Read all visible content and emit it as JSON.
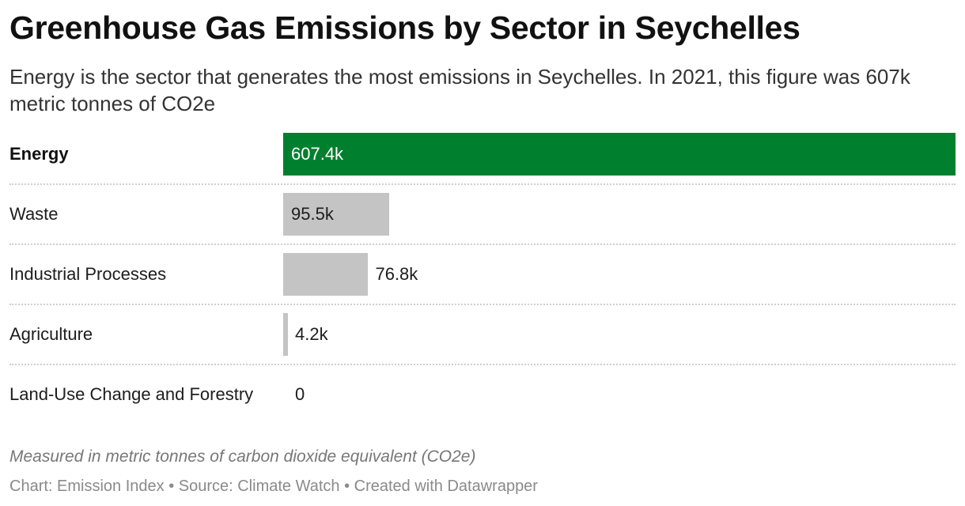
{
  "header": {
    "title": "Greenhouse Gas Emissions by Sector in Seychelles",
    "subtitle": "Energy is the sector that generates the most emissions in Seychelles. In 2021, this figure was 607k metric tonnes of CO2e"
  },
  "chart_data": {
    "type": "bar",
    "orientation": "horizontal",
    "categories": [
      "Energy",
      "Waste",
      "Industrial Processes",
      "Agriculture",
      "Land-Use Change and Forestry"
    ],
    "values": [
      607.4,
      95.5,
      76.8,
      4.2,
      0
    ],
    "value_labels": [
      "607.4k",
      "95.5k",
      "76.8k",
      "4.2k",
      "0"
    ],
    "unit": "thousand metric tonnes CO2e",
    "xlim": [
      0,
      607.4
    ],
    "highlight": "Energy",
    "colors": {
      "highlight": "#00802f",
      "default": "#c4c4c4",
      "label_on_highlight": "#ffffff",
      "label_default": "#1d1d1d"
    },
    "grid": false,
    "legend": "none"
  },
  "footer": {
    "notes": "Measured in metric tonnes of carbon dioxide equivalent (CO2e)",
    "source": "Chart: Emission Index • Source: Climate Watch • Created with Datawrapper"
  }
}
